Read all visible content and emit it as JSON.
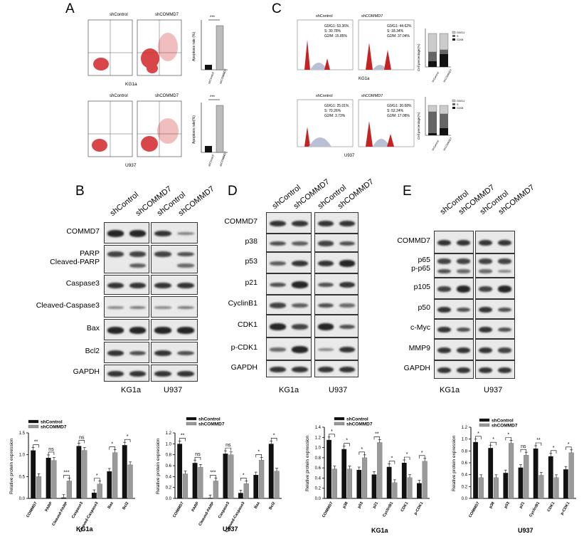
{
  "panelA": {
    "letter": "A",
    "kg1a": {
      "cell_line": "KG1a",
      "headers": [
        "shControl",
        "shCOMMD7"
      ],
      "ylabel": "Apoptosis rate (%)",
      "sig": "***",
      "bar_ticks": [
        "shControl",
        "shCOMMD7"
      ],
      "values": [
        2,
        19
      ]
    },
    "u937": {
      "cell_line": "U937",
      "headers": [
        "shControl",
        "shCOMMD7"
      ],
      "ylabel": "Apoptosis rate(%)",
      "sig": "***",
      "bar_ticks": [
        "shControl",
        "shCOMMD7"
      ],
      "values": [
        3,
        24
      ]
    }
  },
  "panelC": {
    "letter": "C",
    "kg1a": {
      "cell_line": "KG1a",
      "headers": [
        "shControl",
        "shCOMMD7"
      ],
      "stats_ctrl": [
        "G0/G1: 53.36%",
        "S: 30.78%",
        "G2/M: 15.85%"
      ],
      "stats_sh": [
        "G0/G1: 44.62%",
        "S: 18.34%",
        "G2/M: 37.04%"
      ],
      "ylabel": "Cell percentage(%)",
      "legend": [
        "G0/G1",
        "S",
        "G2/M"
      ],
      "bar_ticks": [
        "shControl",
        "shCOMMD7"
      ]
    },
    "u937": {
      "cell_line": "U937",
      "headers": [
        "shControl",
        "shCOMMD7"
      ],
      "stats_ctrl": [
        "G0/G1: 25.01%",
        "S: 70.26%",
        "G2/M: 3.73%"
      ],
      "stats_sh": [
        "G0/G1: 30.68%",
        "S: 52.24%",
        "G2/M: 17.08%"
      ],
      "ylabel": "Cell percentage(%)",
      "legend": [
        "G0/G1",
        "S",
        "G2/M"
      ],
      "bar_ticks": [
        "shControl",
        "shCOMMD7"
      ]
    }
  },
  "panelB": {
    "letter": "B",
    "columns": [
      "shControl",
      "shCOMMD7",
      "shControl",
      "shCOMMD7"
    ],
    "rows": [
      "COMMD7",
      "PARP",
      "Cleaved-PARP",
      "Caspase3",
      "Cleaved-Caspase3",
      "Bax",
      "Bcl2",
      "GAPDH"
    ],
    "cell_lines": [
      "KG1a",
      "U937"
    ]
  },
  "panelD": {
    "letter": "D",
    "columns": [
      "shControl",
      "shCOMMD7",
      "shControl",
      "shCOMMD7"
    ],
    "rows": [
      "COMMD7",
      "p38",
      "p53",
      "p21",
      "CyclinB1",
      "CDK1",
      "p-CDK1",
      "GAPDH"
    ],
    "cell_lines": [
      "KG1a",
      "U937"
    ]
  },
  "panelE": {
    "letter": "E",
    "columns": [
      "shControl",
      "shCOMMD7",
      "shControl",
      "shCOMMD7"
    ],
    "rows": [
      "COMMD7",
      "p65",
      "p-p65",
      "p105",
      "p50",
      "c-Myc",
      "MMP9",
      "GAPDH"
    ],
    "cell_lines": [
      "KG1a",
      "U937"
    ]
  },
  "chart_data": [
    {
      "type": "bar",
      "title": "KG1a",
      "ylabel": "Relative protein expression",
      "categories": [
        "COMMD7",
        "PARP",
        "Cleaved-PARP",
        "Caspase3",
        "Cleaved-Caspase3",
        "Bax",
        "Bcl2"
      ],
      "series": [
        {
          "name": "shControl",
          "values": [
            1.1,
            0.93,
            0.02,
            1.2,
            0.13,
            0.62,
            1.22
          ]
        },
        {
          "name": "shCOMMD7",
          "values": [
            0.5,
            0.87,
            0.4,
            1.1,
            0.33,
            1.05,
            0.77
          ]
        }
      ],
      "sig": [
        "**",
        "ns",
        "***",
        "ns",
        "*",
        "*",
        "*"
      ],
      "ylim": [
        0,
        1.5
      ],
      "yticks": [
        "0.0",
        "0.5",
        "1.0",
        "1.5"
      ],
      "legend": [
        "shControl",
        "shCOMMD7"
      ],
      "xlabel": "KG1a"
    },
    {
      "type": "bar",
      "title": "U937",
      "ylabel": "Relative protein expression",
      "categories": [
        "COMMD7",
        "PARP",
        "Cleaved-PARP",
        "Caspase3",
        "Cleaved-Caspase3",
        "Bax",
        "Bcl2"
      ],
      "series": [
        {
          "name": "shControl",
          "values": [
            1.0,
            0.65,
            0.01,
            0.82,
            0.1,
            0.43,
            1.0
          ]
        },
        {
          "name": "shCOMMD7",
          "values": [
            0.45,
            0.57,
            0.32,
            0.8,
            0.27,
            0.7,
            0.5
          ]
        }
      ],
      "sig": [
        "**",
        "ns",
        "***",
        "ns",
        "*",
        "*",
        "*"
      ],
      "ylim": [
        0,
        1.2
      ],
      "yticks": [
        "0.0",
        "0.2",
        "0.4",
        "0.6",
        "0.8",
        "1.0",
        "1.2"
      ],
      "legend": [
        "shControl",
        "shCOMMD7"
      ],
      "xlabel": "U937"
    },
    {
      "type": "bar",
      "title": "KG1a",
      "ylabel": "Relative protein expression",
      "categories": [
        "COMMD7",
        "p38",
        "p53",
        "p21",
        "CyclinB1",
        "CDK1",
        "p-CDK1"
      ],
      "series": [
        {
          "name": "shControl",
          "values": [
            1.15,
            0.97,
            0.56,
            0.47,
            0.62,
            0.7,
            0.3
          ]
        },
        {
          "name": "shCOMMD7",
          "values": [
            0.58,
            0.58,
            0.8,
            1.1,
            0.31,
            0.41,
            0.73
          ]
        }
      ],
      "sig": [
        "*",
        "*",
        "*",
        "**",
        "*",
        "*",
        "*"
      ],
      "ylim": [
        0,
        1.4
      ],
      "yticks": [
        "0.0",
        "0.2",
        "0.4",
        "0.6",
        "0.8",
        "1.0",
        "1.2",
        "1.4"
      ],
      "legend": [
        "shControl",
        "shCOMMD7"
      ],
      "xlabel": "KG1a"
    },
    {
      "type": "bar",
      "title": "U937",
      "ylabel": "Relative protein expression",
      "categories": [
        "COMMD7",
        "p38",
        "p53",
        "p21",
        "CyclinB1",
        "CDK1",
        "p-CDK1"
      ],
      "series": [
        {
          "name": "shControl",
          "values": [
            0.95,
            0.85,
            0.43,
            0.52,
            0.84,
            0.71,
            0.49
          ]
        },
        {
          "name": "shCOMMD7",
          "values": [
            0.35,
            0.35,
            0.93,
            0.73,
            0.39,
            0.35,
            0.77
          ]
        }
      ],
      "sig": [
        "*",
        "*",
        "*",
        "ns",
        "**",
        "*",
        "*"
      ],
      "ylim": [
        0,
        1.2
      ],
      "yticks": [
        "0.0",
        "0.2",
        "0.4",
        "0.6",
        "0.8",
        "1.0",
        "1.2"
      ],
      "legend": [
        "shControl",
        "shCOMMD7"
      ],
      "xlabel": "U937"
    }
  ]
}
